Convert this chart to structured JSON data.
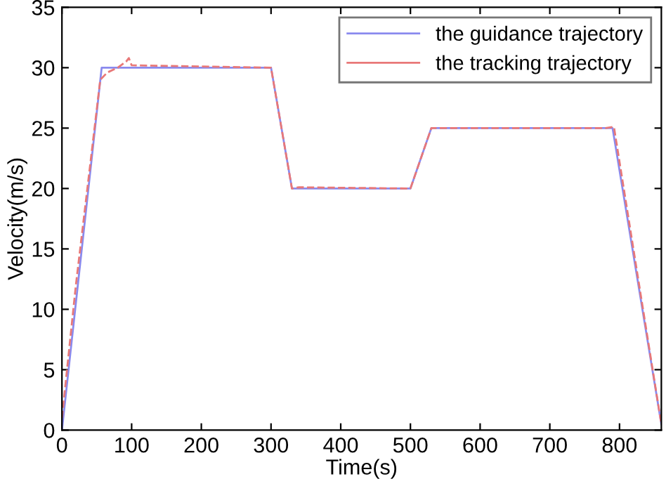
{
  "chart_data": {
    "type": "line",
    "xlabel": "Time(s)",
    "ylabel": "Velocity(m/s)",
    "xlim": [
      0,
      860
    ],
    "ylim": [
      0,
      35
    ],
    "xticks": [
      0,
      100,
      200,
      300,
      400,
      500,
      600,
      700,
      800
    ],
    "yticks": [
      0,
      5,
      10,
      15,
      20,
      25,
      30,
      35
    ],
    "grid": false,
    "legend": "top right",
    "series": [
      {
        "name": "the guidance trajectory",
        "color": "#8a8aee",
        "line_style": "solid",
        "x": [
          0,
          57,
          300,
          330,
          500,
          530,
          790,
          860
        ],
        "values": [
          0,
          30,
          30,
          20,
          20,
          25,
          25,
          0.5
        ]
      },
      {
        "name": "the tracking trajectory",
        "color": "#e87878",
        "line_style": "dashed",
        "x": [
          0,
          20,
          55,
          65,
          80,
          92,
          96,
          100,
          300,
          330,
          340,
          500,
          530,
          780,
          792,
          860
        ],
        "values": [
          1,
          12,
          29,
          29.6,
          30,
          30.5,
          30.8,
          30.2,
          30,
          20,
          20.1,
          20,
          25,
          25,
          25.1,
          0.5
        ]
      }
    ]
  }
}
